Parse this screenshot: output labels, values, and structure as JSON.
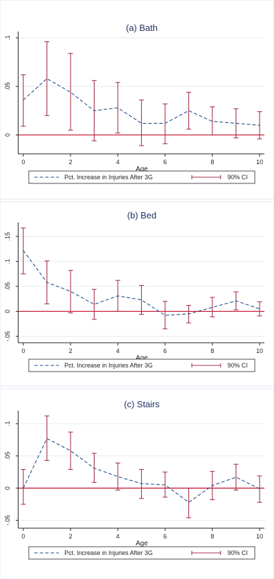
{
  "colors": {
    "series_line": "#1f4e8c",
    "ci": "#a6314a",
    "zero_line": "#c8203c",
    "grid": "#e3ebf2"
  },
  "chart_data": [
    {
      "type": "line",
      "title": "(a) Bath",
      "xlabel": "Age",
      "ylabel": "",
      "x": [
        0,
        1,
        2,
        3,
        4,
        5,
        6,
        7,
        8,
        9,
        10
      ],
      "xticks": [
        "0",
        "2",
        "4",
        "6",
        "8",
        "10"
      ],
      "yticks": [
        "0",
        ".05",
        ".1"
      ],
      "ytick_values": [
        0,
        0.05,
        0.1
      ],
      "ylim": [
        -0.018,
        0.105
      ],
      "grid": true,
      "legend_position": "bottom",
      "series": [
        {
          "name": "Pct. Increase in Injuries After 3G",
          "values": [
            0.036,
            0.058,
            0.044,
            0.025,
            0.028,
            0.012,
            0.012,
            0.025,
            0.014,
            0.012,
            0.01
          ]
        }
      ],
      "ci": {
        "name": "90% CI",
        "lower": [
          0.009,
          0.02,
          0.005,
          -0.006,
          0.002,
          -0.011,
          -0.009,
          0.006,
          0.0,
          -0.003,
          -0.004
        ],
        "upper": [
          0.062,
          0.096,
          0.084,
          0.056,
          0.054,
          0.036,
          0.032,
          0.044,
          0.029,
          0.027,
          0.024
        ]
      },
      "reference_line": 0
    },
    {
      "type": "line",
      "title": "(b) Bed",
      "xlabel": "Age",
      "ylabel": "",
      "x": [
        0,
        1,
        2,
        3,
        4,
        5,
        6,
        7,
        8,
        9,
        10
      ],
      "xticks": [
        "0",
        "2",
        "4",
        "6",
        "8",
        "10"
      ],
      "yticks": [
        "-.05",
        "0",
        ".05",
        ".1",
        ".15"
      ],
      "ytick_values": [
        -0.05,
        0,
        0.05,
        0.1,
        0.15
      ],
      "ylim": [
        -0.06,
        0.175
      ],
      "grid": true,
      "legend_position": "bottom",
      "series": [
        {
          "name": "Pct. Increase in Injuries After 3G",
          "values": [
            0.122,
            0.058,
            0.04,
            0.014,
            0.031,
            0.023,
            -0.008,
            -0.005,
            0.008,
            0.021,
            0.005
          ]
        }
      ],
      "ci": {
        "name": "90% CI",
        "lower": [
          0.075,
          0.015,
          -0.003,
          -0.016,
          0.0,
          -0.006,
          -0.035,
          -0.023,
          -0.011,
          0.003,
          -0.009
        ],
        "upper": [
          0.167,
          0.101,
          0.082,
          0.044,
          0.062,
          0.052,
          0.02,
          0.012,
          0.028,
          0.039,
          0.019
        ]
      },
      "reference_line": 0
    },
    {
      "type": "line",
      "title": "(c) Stairs",
      "xlabel": "Age",
      "ylabel": "",
      "x": [
        0,
        1,
        2,
        3,
        4,
        5,
        6,
        7,
        8,
        9,
        10
      ],
      "xticks": [
        "0",
        "2",
        "4",
        "6",
        "8",
        "10"
      ],
      "yticks": [
        "-.05",
        "0",
        ".05",
        ".1"
      ],
      "ytick_values": [
        -0.05,
        0,
        0.05,
        0.1
      ],
      "ylim": [
        -0.06,
        0.118
      ],
      "grid": true,
      "legend_position": "bottom",
      "series": [
        {
          "name": "Pct. Increase in Injuries After 3G",
          "values": [
            0.0,
            0.077,
            0.058,
            0.031,
            0.018,
            0.007,
            0.005,
            -0.022,
            0.004,
            0.017,
            -0.001
          ]
        }
      ],
      "ci": {
        "name": "90% CI",
        "lower": [
          -0.025,
          0.043,
          0.029,
          0.009,
          -0.003,
          -0.016,
          -0.014,
          -0.046,
          -0.018,
          -0.003,
          -0.022
        ],
        "upper": [
          0.029,
          0.112,
          0.087,
          0.054,
          0.039,
          0.029,
          0.025,
          0.0,
          0.026,
          0.037,
          0.019
        ]
      },
      "reference_line": 0
    }
  ]
}
